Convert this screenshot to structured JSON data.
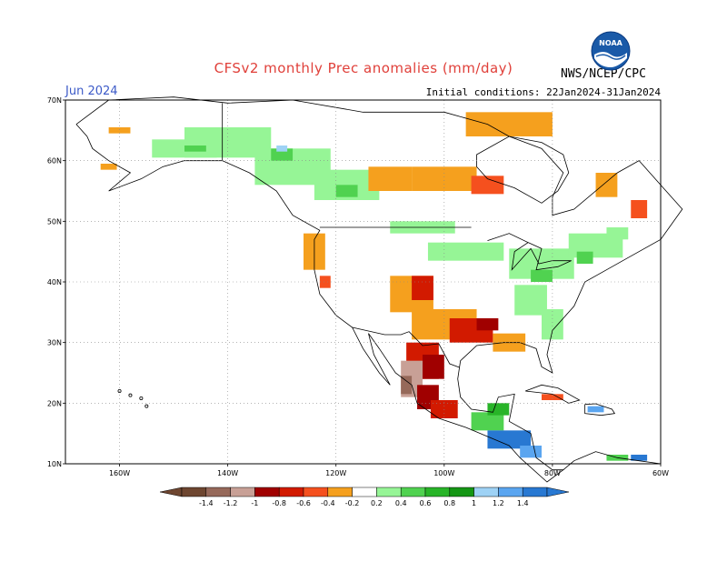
{
  "header": {
    "title": "CFSv2 monthly Prec anomalies (mm/day)",
    "month": "Jun 2024",
    "initial_conditions": "Initial conditions: 22Jan2024-31Jan2024",
    "agency": "NWS/NCEP/CPC",
    "logo_text": "NOAA"
  },
  "axes": {
    "lat_labels": [
      "70N",
      "60N",
      "50N",
      "40N",
      "30N",
      "20N",
      "10N"
    ],
    "lat_values": [
      70,
      60,
      50,
      40,
      30,
      20,
      10
    ],
    "lon_labels": [
      "160W",
      "140W",
      "120W",
      "100W",
      "80W",
      "60W"
    ],
    "lon_values": [
      -160,
      -140,
      -120,
      -100,
      -80,
      -60
    ],
    "lon_range": [
      -170,
      -60
    ],
    "lat_range": [
      10,
      70
    ]
  },
  "legend": {
    "labels": [
      "-1.4",
      "-1.2",
      "-1",
      "-0.8",
      "-0.6",
      "-0.4",
      "-0.2",
      "0.2",
      "0.4",
      "0.6",
      "0.8",
      "1",
      "1.2",
      "1.4"
    ],
    "colors": [
      "#6e4630",
      "#96695a",
      "#c8a096",
      "#a00000",
      "#d21a00",
      "#f5501e",
      "#f5a01e",
      "#ffffff",
      "#96f596",
      "#50d250",
      "#28b428",
      "#149614",
      "#9ed2f5",
      "#5aa5f0",
      "#2878d2"
    ]
  },
  "colors": {
    "title": "#e0403a",
    "month": "#3c5ac8"
  }
}
